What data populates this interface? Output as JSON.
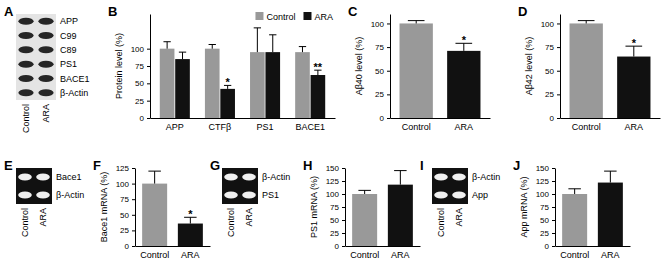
{
  "chart_data": [
    {
      "panel": "B",
      "type": "bar",
      "ylabel": "Protein level (%)",
      "categories": [
        "APP",
        "CTFβ",
        "PS1",
        "BACE1"
      ],
      "series": [
        {
          "name": "Control",
          "color": "#999999",
          "values": [
            100,
            100,
            95,
            95
          ],
          "errors": [
            10,
            6,
            35,
            8
          ]
        },
        {
          "name": "ARA",
          "color": "#111111",
          "values": [
            85,
            42,
            95,
            62
          ],
          "errors": [
            10,
            5,
            25,
            7
          ],
          "annotations": [
            null,
            "*",
            null,
            "**"
          ]
        }
      ],
      "ylim": [
        0,
        150
      ],
      "yticks": [
        0,
        25,
        50,
        75,
        100
      ],
      "legend": "top-right"
    },
    {
      "panel": "C",
      "type": "bar",
      "ylabel": "Aβ40 level (%)",
      "categories": [
        "Control",
        "ARA"
      ],
      "values": [
        100,
        71
      ],
      "errors": [
        3,
        8
      ],
      "colors": [
        "#999999",
        "#111111"
      ],
      "annotations": [
        null,
        "*"
      ],
      "ylim": [
        0,
        110
      ],
      "yticks": [
        0,
        25,
        50,
        75,
        100
      ]
    },
    {
      "panel": "D",
      "type": "bar",
      "ylabel": "Aβ42 level (%)",
      "categories": [
        "Control",
        "ARA"
      ],
      "values": [
        100,
        65
      ],
      "errors": [
        3,
        11
      ],
      "colors": [
        "#999999",
        "#111111"
      ],
      "annotations": [
        null,
        "*"
      ],
      "ylim": [
        0,
        110
      ],
      "yticks": [
        0,
        25,
        50,
        75,
        100
      ]
    },
    {
      "panel": "F",
      "type": "bar",
      "ylabel": "Bace1 mRNA (%)",
      "categories": [
        "Control",
        "ARA"
      ],
      "values": [
        100,
        36
      ],
      "errors": [
        20,
        10
      ],
      "colors": [
        "#999999",
        "#111111"
      ],
      "annotations": [
        null,
        "*"
      ],
      "ylim": [
        0,
        125
      ],
      "yticks": [
        0,
        25,
        50,
        75,
        100,
        125
      ]
    },
    {
      "panel": "H",
      "type": "bar",
      "ylabel": "PS1 mRNA (%)",
      "categories": [
        "Control",
        "ARA"
      ],
      "values": [
        100,
        118
      ],
      "errors": [
        7,
        27
      ],
      "colors": [
        "#999999",
        "#111111"
      ],
      "ylim": [
        0,
        150
      ],
      "yticks": [
        0,
        25,
        50,
        75,
        100,
        125,
        150
      ]
    },
    {
      "panel": "J",
      "type": "bar",
      "ylabel": "App mRNA (%)",
      "categories": [
        "Control",
        "ARA"
      ],
      "values": [
        100,
        122
      ],
      "errors": [
        10,
        22
      ],
      "colors": [
        "#999999",
        "#111111"
      ],
      "ylim": [
        0,
        150
      ],
      "yticks": [
        0,
        25,
        50,
        75,
        100,
        125,
        150
      ]
    }
  ],
  "blots": [
    {
      "panel": "A",
      "type": "western_blot",
      "bands": [
        "APP",
        "C99",
        "C89",
        "PS1",
        "BACE1",
        "β-Actin"
      ],
      "lanes": [
        "Control",
        "ARA"
      ]
    },
    {
      "panel": "E",
      "type": "gel",
      "bands": [
        "Bace1",
        "β-Actin"
      ],
      "lanes": [
        "Control",
        "ARA"
      ]
    },
    {
      "panel": "G",
      "type": "gel",
      "bands": [
        "β-Actin",
        "PS1"
      ],
      "lanes": [
        "Control",
        "ARA"
      ]
    },
    {
      "panel": "I",
      "type": "gel",
      "bands": [
        "β-Actin",
        "App"
      ],
      "lanes": [
        "Control",
        "ARA"
      ]
    }
  ]
}
